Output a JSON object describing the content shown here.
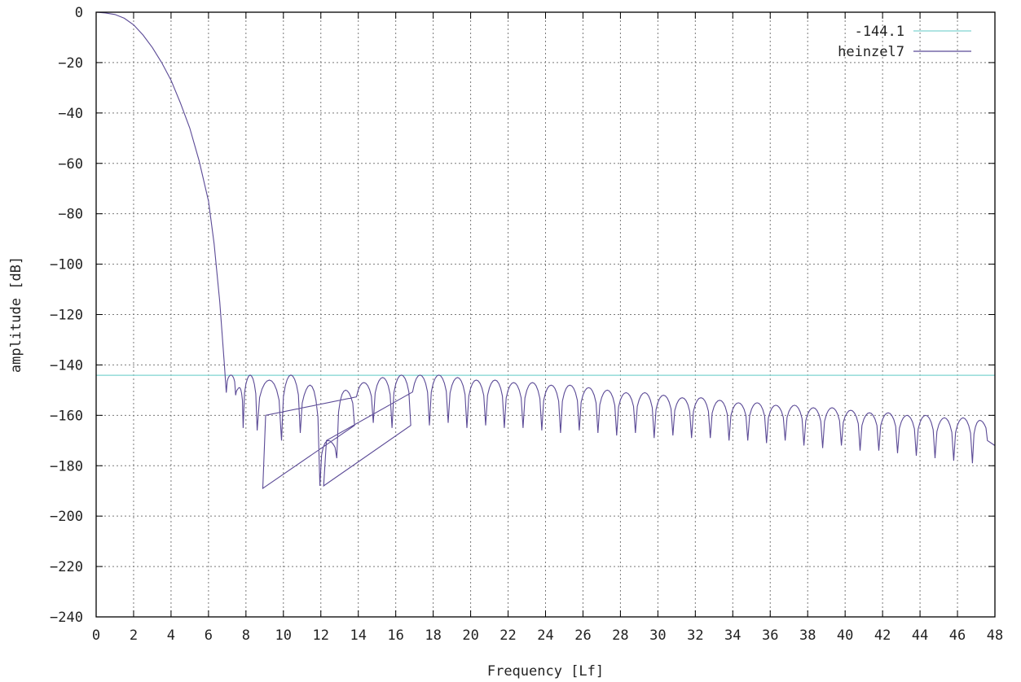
{
  "chart_data": {
    "type": "line",
    "title": "",
    "xlabel": "Frequency [Lf]",
    "ylabel": "amplitude [dB]",
    "xlim": [
      0,
      48
    ],
    "ylim": [
      -240,
      0
    ],
    "x_ticks": [
      0,
      2,
      4,
      6,
      8,
      10,
      12,
      14,
      16,
      18,
      20,
      22,
      24,
      26,
      28,
      30,
      32,
      34,
      36,
      38,
      40,
      42,
      44,
      46,
      48
    ],
    "y_ticks": [
      0,
      -20,
      -40,
      -60,
      -80,
      -100,
      -120,
      -140,
      -160,
      -180,
      -200,
      -220,
      -240
    ],
    "grid": true,
    "legend_position": "top-right",
    "series": [
      {
        "name": "-144.1",
        "color": "#7fd4d1",
        "constant": -144.1
      },
      {
        "name": "heinzel7",
        "color": "#5b4a96",
        "mainlobe": [
          [
            0,
            0
          ],
          [
            0.5,
            -0.3
          ],
          [
            1,
            -0.9
          ],
          [
            1.5,
            -2.4
          ],
          [
            2,
            -5
          ],
          [
            2.5,
            -9
          ],
          [
            3,
            -14
          ],
          [
            3.5,
            -20
          ],
          [
            4,
            -27
          ],
          [
            4.5,
            -36
          ],
          [
            5,
            -46
          ],
          [
            5.5,
            -59
          ],
          [
            6,
            -75
          ],
          [
            6.3,
            -92
          ],
          [
            6.6,
            -115
          ],
          [
            6.85,
            -140
          ],
          [
            6.95,
            -151
          ]
        ],
        "sidelobe_centers": [
          7.25,
          7.65,
          8.2,
          9.3,
          10.3,
          11.4,
          12.6,
          13.3,
          14.3,
          15.3,
          16.3,
          17.3,
          18.3,
          19.3,
          20.3,
          21.3,
          22.3,
          23.3,
          24.3,
          25.3,
          26.3,
          27.3,
          28.3,
          29.3,
          30.3,
          31.3,
          32.3,
          33.3,
          34.3,
          35.3,
          36.3,
          37.3,
          38.3,
          39.3,
          40.3,
          41.3,
          42.3,
          43.3,
          44.3,
          45.3,
          46.3,
          47.3
        ],
        "sidelobe_peaks": [
          -144,
          -149,
          -144,
          -146,
          -144,
          -148,
          -170,
          -150,
          -147,
          -145,
          -144,
          -144,
          -144,
          -145,
          -146,
          -146,
          -147,
          -147,
          -148,
          -148,
          -149,
          -150,
          -151,
          -151,
          -152,
          -153,
          -153,
          -154,
          -155,
          -155,
          -156,
          -156,
          -157,
          -157,
          -158,
          -159,
          -159,
          -160,
          -160,
          -161,
          -161,
          -162
        ],
        "nulls": [
          [
            6.95,
            -151
          ],
          [
            7.45,
            -152
          ],
          [
            7.85,
            -165
          ],
          [
            8.6,
            -166
          ],
          [
            9.9,
            -170
          ],
          [
            10.9,
            -167
          ],
          [
            11.95,
            -188
          ],
          [
            12.85,
            -177
          ],
          [
            13.8,
            -164
          ],
          [
            14.8,
            -163
          ],
          [
            15.8,
            -165
          ],
          [
            16.8,
            -164
          ],
          [
            17.8,
            -164
          ],
          [
            18.8,
            -163
          ],
          [
            19.8,
            -165
          ],
          [
            20.8,
            -164
          ],
          [
            21.8,
            -165
          ],
          [
            22.8,
            -165
          ],
          [
            23.8,
            -166
          ],
          [
            24.8,
            -167
          ],
          [
            25.8,
            -166
          ],
          [
            26.8,
            -167
          ],
          [
            27.8,
            -168
          ],
          [
            28.8,
            -167
          ],
          [
            29.8,
            -169
          ],
          [
            30.8,
            -168
          ],
          [
            31.8,
            -169
          ],
          [
            32.8,
            -169
          ],
          [
            33.8,
            -170
          ],
          [
            34.8,
            -170
          ],
          [
            35.8,
            -171
          ],
          [
            36.8,
            -170
          ],
          [
            37.8,
            -172
          ],
          [
            38.8,
            -173
          ],
          [
            39.8,
            -172
          ],
          [
            40.8,
            -174
          ],
          [
            41.8,
            -174
          ],
          [
            42.8,
            -175
          ],
          [
            43.8,
            -176
          ],
          [
            44.8,
            -177
          ],
          [
            45.8,
            -178
          ],
          [
            46.8,
            -179
          ],
          [
            47.6,
            -170
          ]
        ],
        "deep_nulls": [
          [
            8.9,
            -189
          ],
          [
            12.2,
            -188
          ]
        ]
      }
    ]
  }
}
